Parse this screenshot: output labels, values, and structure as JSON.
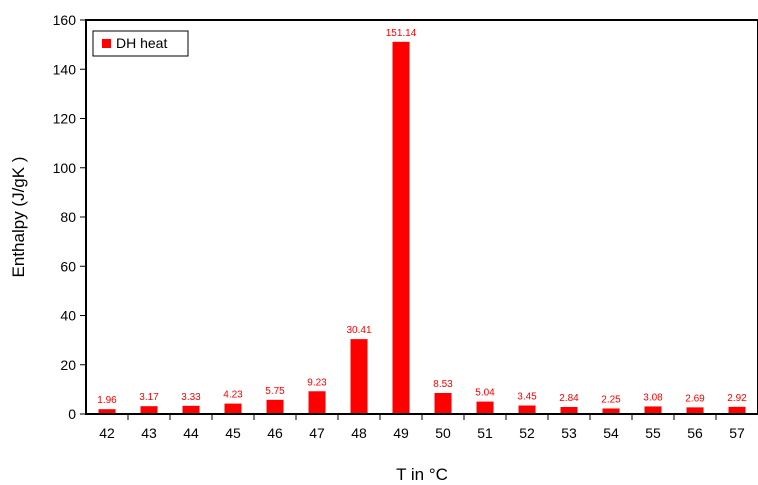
{
  "chart_data": {
    "type": "bar",
    "categories": [
      "42",
      "43",
      "44",
      "45",
      "46",
      "47",
      "48",
      "49",
      "50",
      "51",
      "52",
      "53",
      "54",
      "55",
      "56",
      "57"
    ],
    "series": [
      {
        "name": "DH heat",
        "color": "#ff0000",
        "values": [
          1.96,
          3.17,
          3.33,
          4.23,
          5.75,
          9.23,
          30.41,
          151.14,
          8.53,
          5.04,
          3.45,
          2.84,
          2.25,
          3.08,
          2.69,
          2.92
        ],
        "labels": [
          "1.96",
          "3.17",
          "3.33",
          "4.23",
          "5.75",
          "9.23",
          "30.41",
          "151.14",
          "8.53",
          "5.04",
          "3.45",
          "2.84",
          "2.25",
          "3.08",
          "2.69",
          "2.92"
        ]
      }
    ],
    "xlabel": "T in °C",
    "ylabel": "Enthalpy (J/gK )",
    "ylim": [
      0,
      160
    ],
    "yticks": [
      0,
      20,
      40,
      60,
      80,
      100,
      120,
      140,
      160
    ],
    "legend_position": "top-left",
    "grid": false
  }
}
